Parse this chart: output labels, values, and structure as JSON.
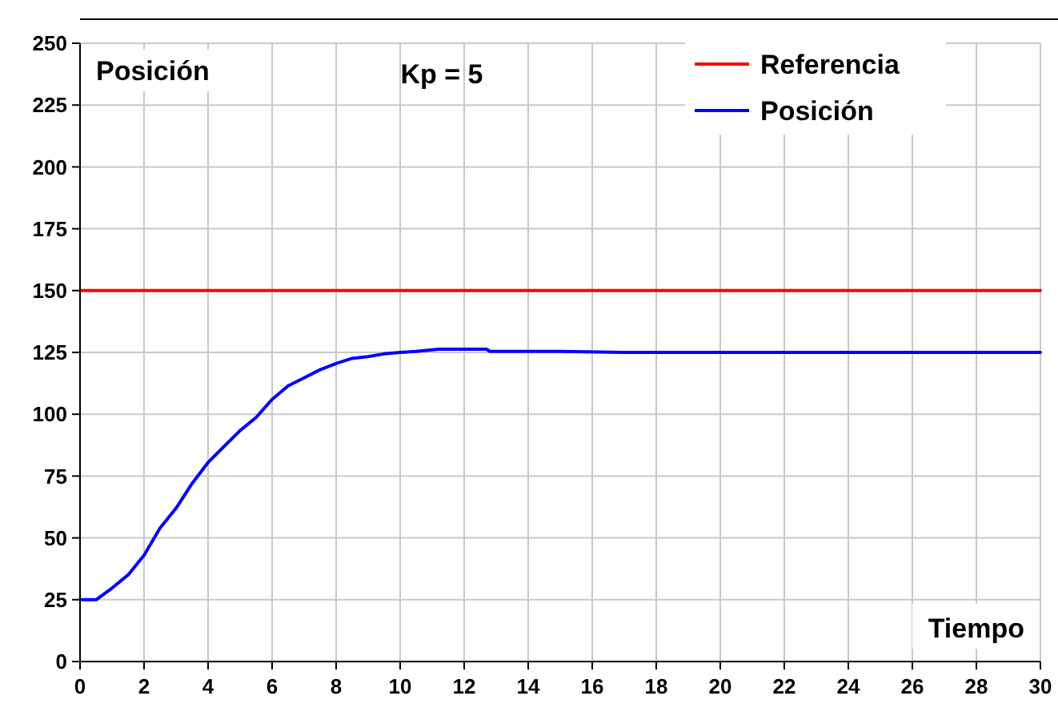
{
  "chart_data": {
    "type": "line",
    "ylabel": "Posición",
    "xlabel": "Tiempo",
    "annotations": [
      "Kp = 5"
    ],
    "xlim": [
      0,
      30
    ],
    "xticks": [
      0,
      2,
      4,
      6,
      8,
      10,
      12,
      14,
      16,
      18,
      20,
      22,
      24,
      26,
      28,
      30
    ],
    "ylim": [
      0,
      250
    ],
    "yticks": [
      0,
      25,
      50,
      75,
      100,
      125,
      150,
      175,
      200,
      225,
      250
    ],
    "grid": true,
    "legend": "top right",
    "marker": "none",
    "line_style": "solid",
    "series": [
      {
        "name": "Referencia",
        "color": "#ff0000",
        "x": [
          0,
          30
        ],
        "values": [
          150,
          150
        ]
      },
      {
        "name": "Posición",
        "color": "#0000ff",
        "x": [
          0,
          0.5,
          1,
          1.5,
          2,
          2.5,
          3,
          3.5,
          4,
          4.5,
          5,
          5.5,
          6,
          6.5,
          7,
          7.5,
          8,
          8.5,
          9,
          9.5,
          10,
          10.5,
          11.2,
          12.7,
          12.8,
          15,
          17,
          20,
          25,
          30
        ],
        "values": [
          25,
          25,
          29.7,
          35,
          43,
          54,
          62,
          72,
          80.5,
          87,
          93.4,
          98.7,
          106,
          111.5,
          114.7,
          118,
          120.5,
          122.6,
          123.3,
          124.4,
          125,
          125.4,
          126.3,
          126.3,
          125.4,
          125.4,
          125,
          125,
          125,
          125
        ]
      }
    ]
  }
}
